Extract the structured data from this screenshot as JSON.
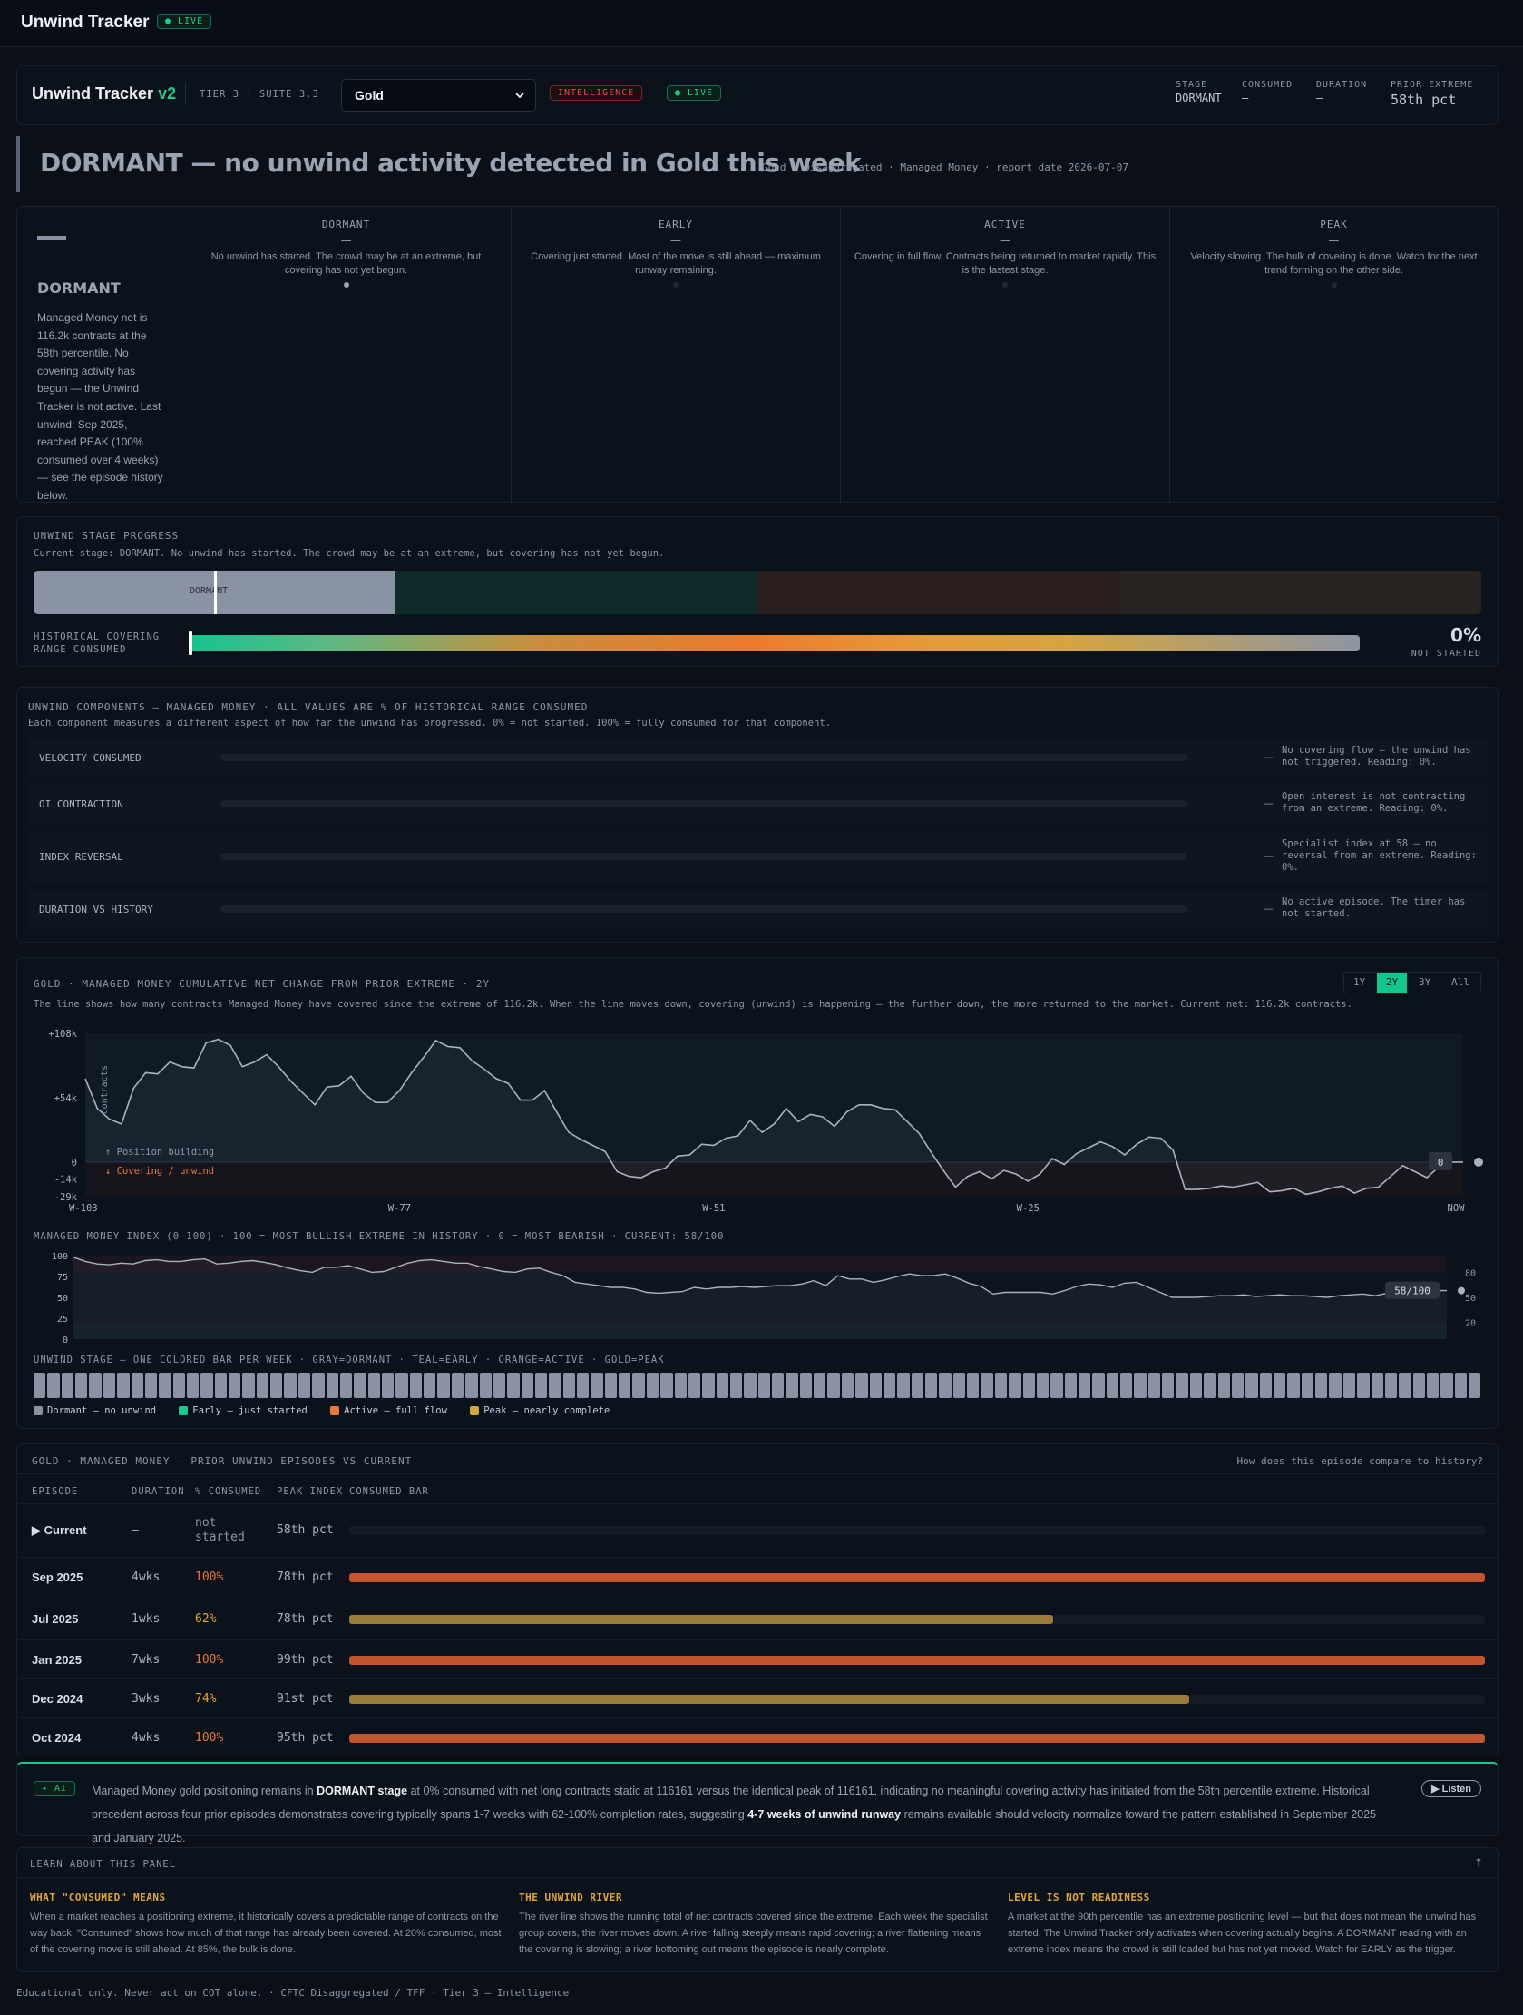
{
  "app": {
    "title": "Unwind Tracker",
    "live": "● LIVE"
  },
  "header": {
    "title": "Unwind Tracker",
    "version": "v2",
    "tier": "TIER 3 · SUITE 3.3",
    "market": "Gold",
    "intel": "INTELLIGENCE",
    "live": "● LIVE",
    "stats": [
      {
        "k": "STAGE",
        "v": "DORMANT"
      },
      {
        "k": "CONSUMED",
        "v": "—"
      },
      {
        "k": "DURATION",
        "v": "—"
      },
      {
        "k": "PRIOR EXTREME",
        "v": "58th pct"
      }
    ]
  },
  "hero": {
    "title": "DORMANT — no unwind activity detected in Gold this week",
    "meta": "Gold · Disaggregated · Managed Money · report date 2026-07-07"
  },
  "stage_card": {
    "dash": "—",
    "name": "DORMANT",
    "desc": "Managed Money net is 116.2k contracts at the 58th percentile. No covering activity has begun — the Unwind Tracker is not active. Last unwind: Sep 2025, reached PEAK (100% consumed over 4 weeks) — see the episode history below.",
    "stages": [
      {
        "name": "DORMANT",
        "dash": "—",
        "desc": "No unwind has started. The crowd may be at an extreme, but covering has not yet begun.",
        "active": true
      },
      {
        "name": "EARLY",
        "dash": "—",
        "desc": "Covering just started. Most of the move is still ahead — maximum runway remaining.",
        "active": false
      },
      {
        "name": "ACTIVE",
        "dash": "—",
        "desc": "Covering in full flow. Contracts being returned to market rapidly. This is the fastest stage.",
        "active": false
      },
      {
        "name": "PEAK",
        "dash": "—",
        "desc": "Velocity slowing. The bulk of covering is done. Watch for the next trend forming on the other side.",
        "active": false
      }
    ]
  },
  "progress": {
    "label": "UNWIND STAGE PROGRESS",
    "current": "Current stage: DORMANT. No unwind has started. The crowd may be at an extreme, but covering has not yet begun.",
    "marker": "DORMANT",
    "hist_label_1": "HISTORICAL COVERING",
    "hist_label_2": "RANGE CONSUMED",
    "pct": "0%",
    "status": "NOT STARTED",
    "consumed_fraction": 0
  },
  "components": {
    "label": "UNWIND COMPONENTS — MANAGED MONEY · ALL VALUES ARE % OF HISTORICAL RANGE CONSUMED",
    "sub": "Each component measures a different aspect of how far the unwind has progressed. 0% = not started. 100% = fully consumed for that component.",
    "items": [
      {
        "name": "VELOCITY CONSUMED",
        "dash": "—",
        "note": "No covering flow — the unwind has not triggered. Reading: 0%.",
        "value": 0
      },
      {
        "name": "OI CONTRACTION",
        "dash": "—",
        "note": "Open interest is not contracting from an extreme. Reading: 0%.",
        "value": 0
      },
      {
        "name": "INDEX REVERSAL",
        "dash": "—",
        "note": "Specialist index at 58 — no reversal from an extreme. Reading: 0%.",
        "value": 0
      },
      {
        "name": "DURATION VS HISTORY",
        "dash": "—",
        "note": "No active episode. The timer has not started.",
        "value": 0
      }
    ]
  },
  "river": {
    "label": "GOLD · MANAGED MONEY CUMULATIVE NET CHANGE FROM PRIOR EXTREME · 2Y",
    "sub": "The line shows how many contracts Managed Money have covered since the extreme of 116.2k. When the line moves down, covering (unwind) is happening — the further down, the more returned to the market. Current net: 116.2k contracts.",
    "ranges": [
      "1Y",
      "2Y",
      "3Y",
      "All"
    ],
    "active_range": "2Y",
    "ylabel": "contracts",
    "building": "↑ Position building",
    "covering": "↓ Covering / unwind",
    "end_badge": "0",
    "yticks": [
      "+108k",
      "+54k",
      "0",
      "-14k",
      "-29k"
    ],
    "xticks": [
      "W-103",
      "W-77",
      "W-51",
      "W-25",
      "NOW"
    ]
  },
  "index_chart": {
    "label": "MANAGED MONEY INDEX (0–100) · 100 = MOST BULLISH EXTREME IN HISTORY · 0 = MOST BEARISH · CURRENT: 58/100",
    "yticks": [
      "100",
      "75",
      "50",
      "25",
      "0"
    ],
    "right_ticks": [
      "80",
      "50",
      "20"
    ],
    "badge": "58/100"
  },
  "stage_strip": {
    "label": "UNWIND STAGE — ONE COLORED BAR PER WEEK · GRAY=DORMANT · TEAL=EARLY · ORANGE=ACTIVE · GOLD=PEAK",
    "legend": [
      "Dormant — no unwind",
      "Early — just started",
      "Active — full flow",
      "Peak — nearly complete"
    ],
    "legend_colors": [
      "#8a93a3",
      "#1dc98d",
      "#e8773a",
      "#d4a63f"
    ]
  },
  "episodes": {
    "label": "GOLD · MANAGED MONEY — PRIOR UNWIND EPISODES VS CURRENT",
    "question": "How does this episode compare to history?",
    "headers": [
      "EPISODE",
      "DURATION",
      "% CONSUMED",
      "PEAK INDEX",
      "CONSUMED BAR"
    ],
    "rows": [
      {
        "ep": "▶ Current",
        "dur": "—",
        "pct": "not started",
        "peak": "58th pct",
        "fill": 0,
        "color": "#e8773a"
      },
      {
        "ep": "Sep 2025",
        "dur": "4wks",
        "pct": "100%",
        "peak": "78th pct",
        "fill": 1.0,
        "color": "#c0552e"
      },
      {
        "ep": "Jul 2025",
        "dur": "1wks",
        "pct": "62%",
        "peak": "78th pct",
        "fill": 0.62,
        "color": "#9c7b3a"
      },
      {
        "ep": "Jan 2025",
        "dur": "7wks",
        "pct": "100%",
        "peak": "99th pct",
        "fill": 1.0,
        "color": "#c0552e"
      },
      {
        "ep": "Dec 2024",
        "dur": "3wks",
        "pct": "74%",
        "peak": "91st pct",
        "fill": 0.74,
        "color": "#9c7b3a"
      },
      {
        "ep": "Oct 2024",
        "dur": "4wks",
        "pct": "100%",
        "peak": "95th pct",
        "fill": 1.0,
        "color": "#c0552e"
      }
    ]
  },
  "ai": {
    "tag": "✦ AI",
    "listen": "▶ Listen",
    "p1": "Managed Money gold positioning remains in ",
    "b1": "DORMANT stage",
    "p2": " at 0% consumed with net long contracts static at 116161 versus the identical peak of 116161, indicating no meaningful covering activity has initiated from the 58th percentile extreme. Historical precedent across four prior episodes demonstrates covering typically spans 1-7 weeks with 62-100% completion rates, suggesting ",
    "b2": "4-7 weeks of unwind runway",
    "p3": " remains available should velocity normalize toward the pattern established in September 2025 and January 2025."
  },
  "learn": {
    "label": "LEARN ABOUT THIS PANEL",
    "arrow": "↑",
    "items": [
      {
        "h": "WHAT \"CONSUMED\" MEANS",
        "b": "When a market reaches a positioning extreme, it historically covers a predictable range of contracts on the way back. \"Consumed\" shows how much of that range has already been covered. At 20% consumed, most of the covering move is still ahead. At 85%, the bulk is done."
      },
      {
        "h": "THE UNWIND RIVER",
        "b": "The river line shows the running total of net contracts covered since the extreme. Each week the specialist group covers, the river moves down. A river falling steeply means rapid covering; a river flattening means the covering is slowing; a river bottoming out means the episode is nearly complete."
      },
      {
        "h": "LEVEL IS NOT READINESS",
        "b": "A market at the 90th percentile has an extreme positioning level — but that does not mean the unwind has started. The Unwind Tracker only activates when covering actually begins. A DORMANT reading with an extreme index means the crowd is still loaded but has not yet moved. Watch for EARLY as the trigger."
      }
    ]
  },
  "footer": "Educational only. Never act on COT alone. · CFTC Disaggregated / TFF · Tier 3 — Intelligence",
  "chart_data": [
    {
      "type": "line",
      "title": "GOLD · MANAGED MONEY CUMULATIVE NET CHANGE FROM PRIOR EXTREME · 2Y",
      "ylabel": "contracts",
      "ylim": [
        -29,
        108
      ],
      "unit": "k contracts",
      "x_ticks": [
        "W-103",
        "W-77",
        "W-51",
        "W-25",
        "NOW"
      ],
      "values": [
        70,
        45,
        36,
        32,
        62,
        75,
        74,
        84,
        80,
        79,
        100,
        103,
        98,
        80,
        84,
        90,
        80,
        68,
        58,
        48,
        63,
        64,
        72,
        58,
        50,
        50,
        60,
        75,
        88,
        102,
        97,
        96,
        85,
        78,
        70,
        66,
        52,
        52,
        60,
        42,
        25,
        19,
        14,
        9,
        -8,
        -12,
        -13,
        -8,
        -5,
        5,
        6,
        15,
        14,
        20,
        22,
        35,
        25,
        32,
        45,
        34,
        40,
        38,
        30,
        42,
        48,
        48,
        45,
        44,
        34,
        24,
        8,
        -7,
        -21,
        -12,
        -8,
        -14,
        -7,
        -10,
        -16,
        -10,
        3,
        -2,
        7,
        12,
        17,
        13,
        6,
        15,
        21,
        20,
        10,
        -23,
        -23,
        -22,
        -20,
        -21,
        -19,
        -17,
        -25,
        -24,
        -22,
        -27,
        -25,
        -22,
        -20,
        -26,
        -22,
        -21,
        -12,
        -3,
        -8,
        -13,
        -4,
        0,
        0
      ]
    },
    {
      "type": "line",
      "title": "MANAGED MONEY INDEX (0–100)",
      "ylim": [
        0,
        100
      ],
      "current": 58,
      "values": [
        98,
        93,
        90,
        89,
        91,
        90,
        94,
        95,
        93,
        93,
        95,
        96,
        90,
        91,
        93,
        94,
        92,
        89,
        85,
        82,
        80,
        86,
        86,
        88,
        84,
        80,
        81,
        86,
        91,
        94,
        95,
        93,
        91,
        91,
        87,
        84,
        81,
        80,
        84,
        85,
        80,
        76,
        68,
        66,
        64,
        62,
        62,
        60,
        56,
        55,
        56,
        57,
        62,
        60,
        62,
        62,
        63,
        62,
        63,
        64,
        64,
        66,
        70,
        64,
        76,
        72,
        72,
        68,
        71,
        75,
        78,
        76,
        76,
        78,
        73,
        67,
        63,
        54,
        56,
        56,
        56,
        56,
        54,
        58,
        63,
        66,
        65,
        62,
        67,
        68,
        62,
        56,
        50,
        50,
        50,
        51,
        52,
        52,
        53,
        51,
        52,
        53,
        52,
        52,
        51,
        50,
        52,
        53,
        54,
        52,
        55,
        56,
        57,
        58,
        58,
        58
      ]
    }
  ]
}
